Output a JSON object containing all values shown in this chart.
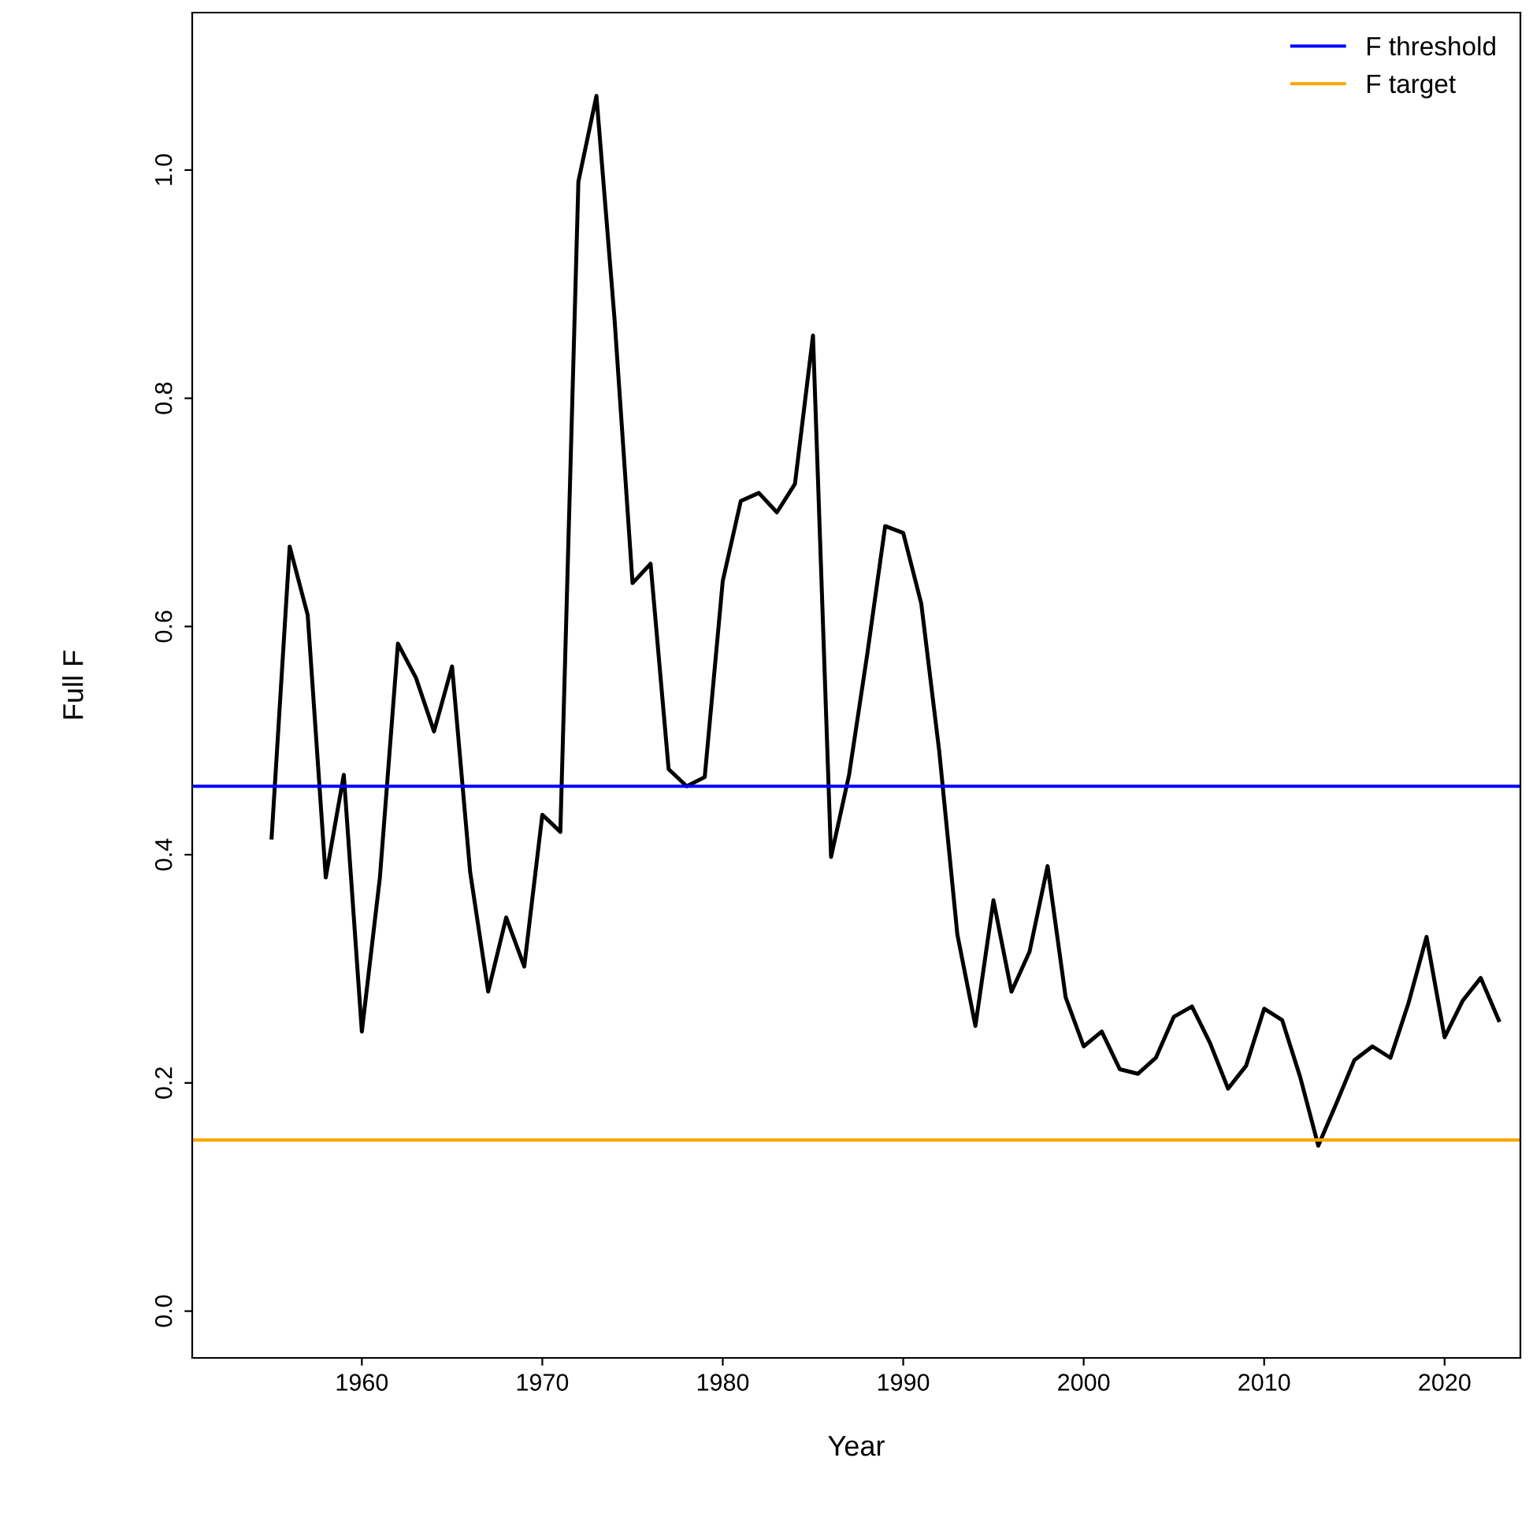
{
  "chart_data": {
    "type": "line",
    "xlabel": "Year",
    "ylabel": "Full F",
    "x": [
      1955,
      1956,
      1957,
      1958,
      1959,
      1960,
      1961,
      1962,
      1963,
      1964,
      1965,
      1966,
      1967,
      1968,
      1969,
      1970,
      1971,
      1972,
      1973,
      1974,
      1975,
      1976,
      1977,
      1978,
      1979,
      1980,
      1981,
      1982,
      1983,
      1984,
      1985,
      1986,
      1987,
      1988,
      1989,
      1990,
      1991,
      1992,
      1993,
      1994,
      1995,
      1996,
      1997,
      1998,
      1999,
      2000,
      2001,
      2002,
      2003,
      2004,
      2005,
      2006,
      2007,
      2008,
      2009,
      2010,
      2011,
      2012,
      2013,
      2014,
      2015,
      2016,
      2017,
      2018,
      2019,
      2020,
      2021,
      2022,
      2023
    ],
    "series": [
      {
        "color": "#000000",
        "values": [
          0.415,
          0.67,
          0.61,
          0.38,
          0.47,
          0.245,
          0.38,
          0.585,
          0.555,
          0.508,
          0.565,
          0.385,
          0.28,
          0.345,
          0.302,
          0.435,
          0.42,
          0.99,
          1.065,
          0.87,
          0.638,
          0.655,
          0.475,
          0.46,
          0.468,
          0.64,
          0.71,
          0.717,
          0.7,
          0.725,
          0.855,
          0.398,
          0.47,
          0.575,
          0.688,
          0.682,
          0.62,
          0.49,
          0.33,
          0.25,
          0.36,
          0.28,
          0.315,
          0.39,
          0.275,
          0.232,
          0.245,
          0.212,
          0.208,
          0.222,
          0.258,
          0.267,
          0.235,
          0.195,
          0.215,
          0.265,
          0.255,
          0.205,
          0.145,
          0.182,
          0.22,
          0.232,
          0.222,
          0.27,
          0.328,
          0.24,
          0.272,
          0.292,
          0.255
        ]
      }
    ],
    "ref_lines": [
      {
        "axis": "y",
        "value": 0.46,
        "label": "F threshold",
        "color": "#0000ff"
      },
      {
        "axis": "y",
        "value": 0.15,
        "label": "F target",
        "color": "#ffa500"
      }
    ],
    "xlim": [
      1950.6,
      2024.2
    ],
    "xticks": [
      1960,
      1970,
      1980,
      1990,
      2000,
      2010,
      2020
    ],
    "ylim": [
      -0.041,
      1.138
    ],
    "yticks": [
      {
        "value": 0,
        "label": "0.0"
      },
      0.2,
      0.4,
      0.6,
      0.8,
      {
        "value": 1,
        "label": "1.0"
      }
    ],
    "grid": false,
    "legend": "top right",
    "marker": "none",
    "line_style": "solid"
  }
}
